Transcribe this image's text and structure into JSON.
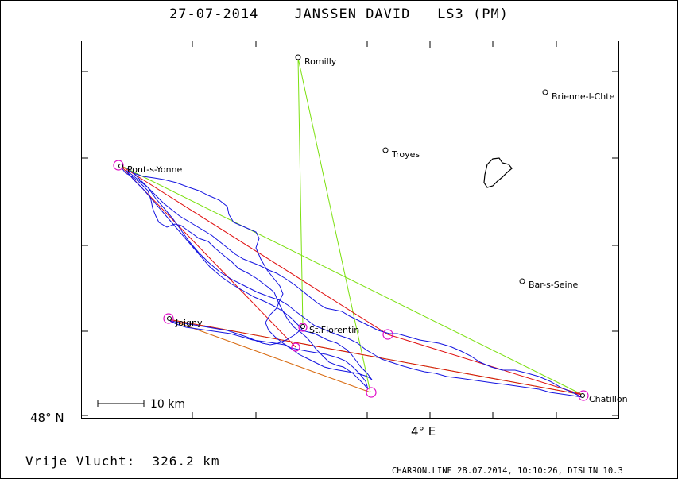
{
  "header": {
    "title": "27-07-2014    JANSSEN DAVID   LS3 (PM)"
  },
  "footer": {
    "distance": "Vrije Vlucht:  326.2 km",
    "credit": "CHARRON.LINE 28.07.2014, 10:10:26, DISLIN 10.3"
  },
  "map": {
    "lat_label": "48° N",
    "lon_label": "4° E",
    "scale_label": "10 km",
    "places": [
      {
        "id": "romilly",
        "name": "Romilly"
      },
      {
        "id": "brienne",
        "name": "Brienne-l-Chte"
      },
      {
        "id": "troyes",
        "name": "Troyes"
      },
      {
        "id": "pont",
        "name": "Pont-s-Yonne"
      },
      {
        "id": "bar",
        "name": "Bar-s-Seine"
      },
      {
        "id": "stflorentin",
        "name": "St.Florentin"
      },
      {
        "id": "joigny",
        "name": "Joigny"
      },
      {
        "id": "chatillon",
        "name": "Chatillon"
      }
    ],
    "colors": {
      "track": "#1414e0",
      "task_red": "#e01010",
      "task_green": "#7ce010",
      "task_orange": "#d86a10",
      "turnpoint": "#e010c8",
      "frame": "#000000"
    }
  }
}
